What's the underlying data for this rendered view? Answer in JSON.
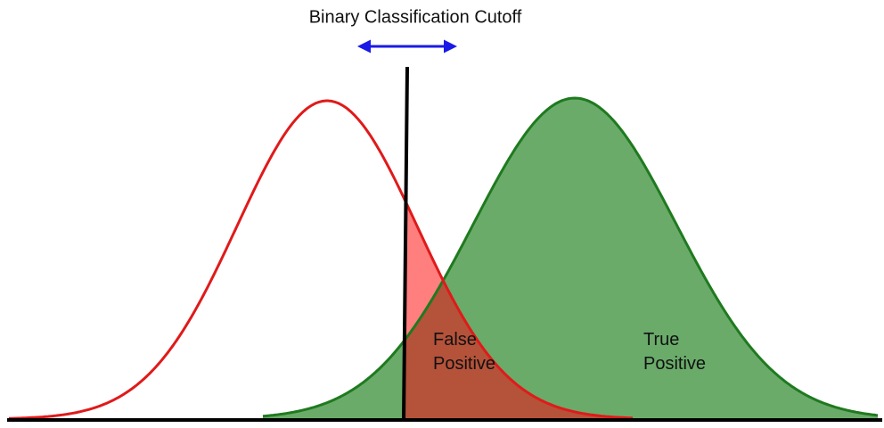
{
  "title": "Binary Classification Cutoff",
  "regions": [
    {
      "lines": [
        "False",
        "Positive"
      ]
    },
    {
      "lines": [
        "True",
        "Positive"
      ]
    }
  ]
}
